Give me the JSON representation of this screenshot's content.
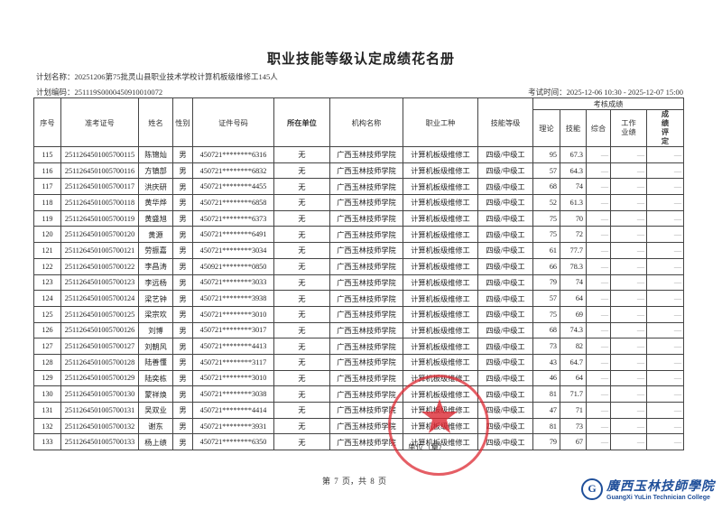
{
  "title": "职业技能等级认定成绩花名册",
  "plan_name": "计划名称：20251206第75批灵山县职业技术学校计算机板级维修工145人",
  "plan_code": "计划编码：251119S0000450910010072",
  "exam_time": "考试时间：2025-12-06 10:30 - 2025-12-07 15:00",
  "headers": {
    "no": "序号",
    "ticket": "准考证号",
    "name": "姓名",
    "gender": "性别",
    "id": "证件号码",
    "unit": "所在单位",
    "org": "机构名称",
    "job": "职业工种",
    "level": "技能等级",
    "scores": "考核成绩",
    "theory": "理论",
    "skill": "技能",
    "overall": "综合",
    "work": "工作业绩",
    "eval": "成绩评定"
  },
  "rows": [
    [
      "115",
      "2511264501005700115",
      "陈锦灿",
      "男",
      "450721********6316",
      "无",
      "广西玉林技师学院",
      "计算机板级维修工",
      "四级/中级工",
      "95",
      "67.3",
      "—",
      "—",
      "—"
    ],
    [
      "116",
      "2511264501005700116",
      "方镇部",
      "男",
      "450721********6832",
      "无",
      "广西玉林技师学院",
      "计算机板级维修工",
      "四级/中级工",
      "57",
      "64.3",
      "—",
      "—",
      "—"
    ],
    [
      "117",
      "2511264501005700117",
      "洪庆研",
      "男",
      "450721********4455",
      "无",
      "广西玉林技师学院",
      "计算机板级维修工",
      "四级/中级工",
      "68",
      "74",
      "—",
      "—",
      "—"
    ],
    [
      "118",
      "2511264501005700118",
      "黄华烨",
      "男",
      "450721********6858",
      "无",
      "广西玉林技师学院",
      "计算机板级维修工",
      "四级/中级工",
      "52",
      "61.3",
      "—",
      "—",
      "—"
    ],
    [
      "119",
      "2511264501005700119",
      "黄盛旭",
      "男",
      "450721********6373",
      "无",
      "广西玉林技师学院",
      "计算机板级维修工",
      "四级/中级工",
      "75",
      "70",
      "—",
      "—",
      "—"
    ],
    [
      "120",
      "2511264501005700120",
      "黄源",
      "男",
      "450721********6491",
      "无",
      "广西玉林技师学院",
      "计算机板级维修工",
      "四级/中级工",
      "75",
      "72",
      "—",
      "—",
      "—"
    ],
    [
      "121",
      "2511264501005700121",
      "劳振嘉",
      "男",
      "450721********3034",
      "无",
      "广西玉林技师学院",
      "计算机板级维修工",
      "四级/中级工",
      "61",
      "77.7",
      "—",
      "—",
      "—"
    ],
    [
      "122",
      "2511264501005700122",
      "李昌涛",
      "男",
      "450921********0850",
      "无",
      "广西玉林技师学院",
      "计算机板级维修工",
      "四级/中级工",
      "66",
      "78.3",
      "—",
      "—",
      "—"
    ],
    [
      "123",
      "2511264501005700123",
      "李远杨",
      "男",
      "450721********3033",
      "无",
      "广西玉林技师学院",
      "计算机板级维修工",
      "四级/中级工",
      "79",
      "74",
      "—",
      "—",
      "—"
    ],
    [
      "124",
      "2511264501005700124",
      "梁艺钟",
      "男",
      "450721********3938",
      "无",
      "广西玉林技师学院",
      "计算机板级维修工",
      "四级/中级工",
      "57",
      "64",
      "—",
      "—",
      "—"
    ],
    [
      "125",
      "2511264501005700125",
      "梁宗欢",
      "男",
      "450721********3010",
      "无",
      "广西玉林技师学院",
      "计算机板级维修工",
      "四级/中级工",
      "75",
      "69",
      "—",
      "—",
      "—"
    ],
    [
      "126",
      "2511264501005700126",
      "刘博",
      "男",
      "450721********3017",
      "无",
      "广西玉林技师学院",
      "计算机板级维修工",
      "四级/中级工",
      "68",
      "74.3",
      "—",
      "—",
      "—"
    ],
    [
      "127",
      "2511264501005700127",
      "刘朝风",
      "男",
      "450721********4413",
      "无",
      "广西玉林技师学院",
      "计算机板级维修工",
      "四级/中级工",
      "73",
      "82",
      "—",
      "—",
      "—"
    ],
    [
      "128",
      "2511264501005700128",
      "陆善懂",
      "男",
      "450721********3117",
      "无",
      "广西玉林技师学院",
      "计算机板级维修工",
      "四级/中级工",
      "43",
      "64.7",
      "—",
      "—",
      "—"
    ],
    [
      "129",
      "2511264501005700129",
      "陆奕栋",
      "男",
      "450721********3010",
      "无",
      "广西玉林技师学院",
      "计算机板级维修工",
      "四级/中级工",
      "46",
      "64",
      "—",
      "—",
      "—"
    ],
    [
      "130",
      "2511264501005700130",
      "蒙祥焕",
      "男",
      "450721********3038",
      "无",
      "广西玉林技师学院",
      "计算机板级维修工",
      "四级/中级工",
      "81",
      "71.7",
      "—",
      "—",
      "—"
    ],
    [
      "131",
      "2511264501005700131",
      "吴双业",
      "男",
      "450721********4414",
      "无",
      "广西玉林技师学院",
      "计算机板级维修工",
      "四级/中级工",
      "47",
      "71",
      "—",
      "—",
      "—"
    ],
    [
      "132",
      "2511264501005700132",
      "谢东",
      "男",
      "450721********3931",
      "无",
      "广西玉林技师学院",
      "计算机板级维修工",
      "四级/中级工",
      "81",
      "73",
      "—",
      "—",
      "—"
    ],
    [
      "133",
      "2511264501005700133",
      "杨上绩",
      "男",
      "450721********6350",
      "无",
      "广西玉林技师学院",
      "计算机板级维修工",
      "四级/中级工",
      "79",
      "67",
      "—",
      "—",
      "—"
    ]
  ],
  "stamp_label": "单位（章）",
  "page_info": "第 7 页，共 8 页",
  "logo": {
    "cn": "廣西玉林技師學院",
    "en": "GuangXi YuLin Technician College"
  },
  "colors": {
    "stamp": "#dc2832",
    "logo": "#1f4f9a"
  }
}
